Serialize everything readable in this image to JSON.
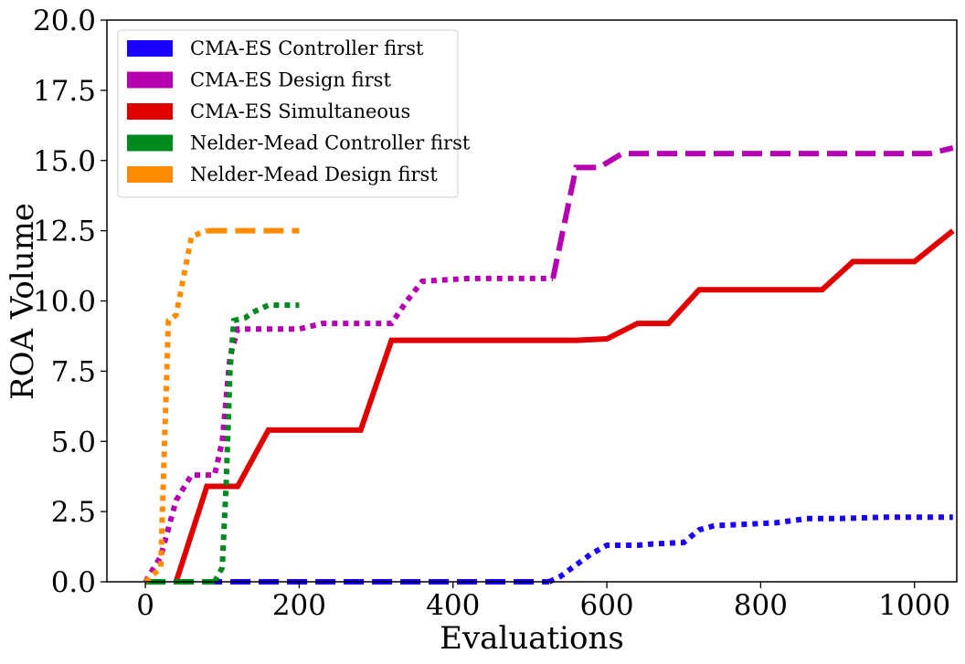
{
  "chart_data": {
    "type": "line",
    "xlabel": "Evaluations",
    "ylabel": "ROA Volume",
    "xlim": [
      -50,
      1055
    ],
    "ylim": [
      0,
      20
    ],
    "xticks": [
      0,
      200,
      400,
      600,
      800,
      1000
    ],
    "yticks": [
      0.0,
      2.5,
      5.0,
      7.5,
      10.0,
      12.5,
      15.0,
      17.5,
      20.0
    ],
    "grid": false,
    "legend_position": "top-left",
    "series": [
      {
        "name": "CMA-ES Controller first",
        "color": "#1a00ff",
        "segments": [
          {
            "dash": "dashed",
            "points": [
              [
                0,
                0.0
              ],
              [
                525,
                0.0
              ]
            ]
          },
          {
            "dash": "dotted",
            "points": [
              [
                525,
                0.0
              ],
              [
                540,
                0.2
              ],
              [
                560,
                0.6
              ],
              [
                580,
                1.0
              ],
              [
                600,
                1.3
              ],
              [
                620,
                1.3
              ],
              [
                640,
                1.3
              ],
              [
                660,
                1.35
              ],
              [
                700,
                1.4
              ],
              [
                720,
                1.85
              ],
              [
                740,
                2.0
              ],
              [
                780,
                2.05
              ],
              [
                820,
                2.1
              ],
              [
                860,
                2.25
              ],
              [
                900,
                2.25
              ],
              [
                960,
                2.3
              ],
              [
                1000,
                2.3
              ],
              [
                1050,
                2.3
              ]
            ]
          }
        ]
      },
      {
        "name": "CMA-ES Design first",
        "color": "#b400b0",
        "segments": [
          {
            "dash": "dotted",
            "points": [
              [
                0,
                0.0
              ],
              [
                20,
                0.9
              ],
              [
                40,
                2.9
              ],
              [
                60,
                3.8
              ],
              [
                90,
                3.8
              ],
              [
                100,
                5.0
              ],
              [
                110,
                8.0
              ],
              [
                120,
                9.0
              ],
              [
                140,
                9.0
              ],
              [
                200,
                9.0
              ],
              [
                230,
                9.2
              ],
              [
                320,
                9.2
              ],
              [
                340,
                10.0
              ],
              [
                360,
                10.7
              ],
              [
                420,
                10.8
              ],
              [
                480,
                10.8
              ],
              [
                530,
                10.8
              ]
            ]
          },
          {
            "dash": "dashed",
            "points": [
              [
                530,
                10.8
              ],
              [
                560,
                14.75
              ],
              [
                590,
                14.75
              ],
              [
                620,
                15.25
              ],
              [
                660,
                15.25
              ],
              [
                1000,
                15.25
              ],
              [
                1020,
                15.25
              ],
              [
                1050,
                15.45
              ]
            ]
          }
        ]
      },
      {
        "name": "CMA-ES Simultaneous",
        "color": "#e00000",
        "segments": [
          {
            "dash": "solid",
            "points": [
              [
                40,
                0.0
              ],
              [
                80,
                3.4
              ],
              [
                120,
                3.4
              ],
              [
                160,
                5.4
              ],
              [
                280,
                5.4
              ],
              [
                320,
                8.6
              ],
              [
                560,
                8.6
              ],
              [
                600,
                8.65
              ],
              [
                640,
                9.2
              ],
              [
                680,
                9.2
              ],
              [
                720,
                10.4
              ],
              [
                880,
                10.4
              ],
              [
                920,
                11.4
              ],
              [
                1000,
                11.4
              ],
              [
                1050,
                12.5
              ]
            ]
          }
        ]
      },
      {
        "name": "Nelder-Mead Controller first",
        "color": "#008a1e",
        "segments": [
          {
            "dash": "dashed",
            "points": [
              [
                0,
                0.0
              ],
              [
                90,
                0.0
              ]
            ]
          },
          {
            "dash": "dotted",
            "points": [
              [
                90,
                0.0
              ],
              [
                100,
                0.5
              ],
              [
                105,
                3.5
              ],
              [
                110,
                7.5
              ],
              [
                115,
                9.3
              ],
              [
                130,
                9.4
              ],
              [
                140,
                9.6
              ],
              [
                160,
                9.85
              ],
              [
                200,
                9.85
              ]
            ]
          }
        ]
      },
      {
        "name": "Nelder-Mead Design first",
        "color": "#ff8c00",
        "segments": [
          {
            "dash": "dotted",
            "points": [
              [
                0,
                0.0
              ],
              [
                20,
                0.5
              ],
              [
                25,
                5.0
              ],
              [
                30,
                9.3
              ],
              [
                40,
                9.5
              ],
              [
                50,
                10.9
              ],
              [
                60,
                12.3
              ],
              [
                70,
                12.4
              ],
              [
                80,
                12.5
              ]
            ]
          },
          {
            "dash": "dashed",
            "points": [
              [
                80,
                12.5
              ],
              [
                200,
                12.5
              ]
            ]
          }
        ]
      }
    ]
  }
}
